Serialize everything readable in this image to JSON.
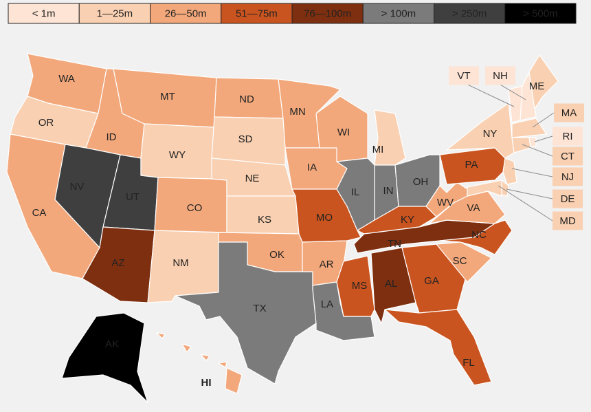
{
  "legend": [
    {
      "label": "< 1m",
      "color": "#fde4d5"
    },
    {
      "label": "1—25m",
      "color": "#f9d0b1"
    },
    {
      "label": "26—50m",
      "color": "#f2a87b"
    },
    {
      "label": "51—75m",
      "color": "#c9541f"
    },
    {
      "label": "76—100m",
      "color": "#7e2f10"
    },
    {
      "label": "> 100m",
      "color": "#7b7b7b"
    },
    {
      "label": "> 250m",
      "color": "#3f3f3f"
    },
    {
      "label": "> 500m",
      "color": "#000000"
    }
  ],
  "states": [
    {
      "label": "WA",
      "class": "26—50m"
    },
    {
      "label": "OR",
      "class": "1—25m"
    },
    {
      "label": "CA",
      "class": "26—50m"
    },
    {
      "label": "ID",
      "class": "26—50m"
    },
    {
      "label": "NV",
      "class": "> 250m"
    },
    {
      "label": "UT",
      "class": "> 250m"
    },
    {
      "label": "AZ",
      "class": "76—100m"
    },
    {
      "label": "MT",
      "class": "26—50m"
    },
    {
      "label": "WY",
      "class": "1—25m"
    },
    {
      "label": "CO",
      "class": "26—50m"
    },
    {
      "label": "NM",
      "class": "1—25m"
    },
    {
      "label": "ND",
      "class": "26—50m"
    },
    {
      "label": "SD",
      "class": "1—25m"
    },
    {
      "label": "NE",
      "class": "1—25m"
    },
    {
      "label": "KS",
      "class": "1—25m"
    },
    {
      "label": "OK",
      "class": "26—50m"
    },
    {
      "label": "TX",
      "class": "> 100m"
    },
    {
      "label": "MN",
      "class": "26—50m"
    },
    {
      "label": "IA",
      "class": "26—50m"
    },
    {
      "label": "MO",
      "class": "51—75m"
    },
    {
      "label": "AR",
      "class": "26—50m"
    },
    {
      "label": "LA",
      "class": "> 100m"
    },
    {
      "label": "WI",
      "class": "26—50m"
    },
    {
      "label": "IL",
      "class": "> 100m"
    },
    {
      "label": "MI",
      "class": "1—25m"
    },
    {
      "label": "IN",
      "class": "> 100m"
    },
    {
      "label": "OH",
      "class": "> 100m"
    },
    {
      "label": "KY",
      "class": "51—75m"
    },
    {
      "label": "TN",
      "class": "76—100m"
    },
    {
      "label": "MS",
      "class": "51—75m"
    },
    {
      "label": "AL",
      "class": "76—100m"
    },
    {
      "label": "GA",
      "class": "51—75m"
    },
    {
      "label": "FL",
      "class": "51—75m"
    },
    {
      "label": "SC",
      "class": "26—50m"
    },
    {
      "label": "NC",
      "class": "51—75m"
    },
    {
      "label": "VA",
      "class": "26—50m"
    },
    {
      "label": "WV",
      "class": "26—50m"
    },
    {
      "label": "PA",
      "class": "51—75m"
    },
    {
      "label": "NY",
      "class": "1—25m"
    },
    {
      "label": "VT",
      "class": "< 1m"
    },
    {
      "label": "NH",
      "class": "< 1m"
    },
    {
      "label": "ME",
      "class": "1—25m"
    },
    {
      "label": "MA",
      "class": "1—25m"
    },
    {
      "label": "RI",
      "class": "< 1m"
    },
    {
      "label": "CT",
      "class": "1—25m"
    },
    {
      "label": "NJ",
      "class": "1—25m"
    },
    {
      "label": "DE",
      "class": "1—25m"
    },
    {
      "label": "MD",
      "class": "1—25m"
    },
    {
      "label": "AK",
      "class": "> 500m"
    },
    {
      "label": "HI",
      "class": "26—50m"
    }
  ]
}
